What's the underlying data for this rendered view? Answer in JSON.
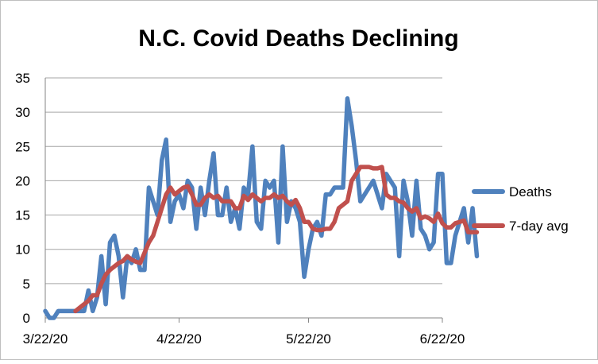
{
  "chart_data": {
    "type": "line",
    "title": "N.C. Covid Deaths Declining",
    "xlabel": "",
    "ylabel": "",
    "ylim": [
      0,
      35
    ],
    "y_ticks": [
      0,
      5,
      10,
      15,
      20,
      25,
      30,
      35
    ],
    "x_range": [
      "2020-03-22",
      "2020-06-22"
    ],
    "x_ticks": [
      {
        "label": "3/22/20",
        "date": "2020-03-22"
      },
      {
        "label": "4/22/20",
        "date": "2020-04-22"
      },
      {
        "label": "5/22/20",
        "date": "2020-05-22"
      },
      {
        "label": "6/22/20",
        "date": "2020-06-22"
      }
    ],
    "grid": true,
    "legend_position": "right",
    "series": [
      {
        "name": "Deaths",
        "color": "#4f81bd",
        "start_date": "2020-03-22",
        "values": [
          1,
          0,
          0,
          1,
          1,
          1,
          1,
          1,
          1,
          1,
          4,
          1,
          3,
          9,
          2,
          11,
          12,
          9,
          3,
          9,
          8,
          10,
          7,
          7,
          19,
          17,
          15,
          23,
          26,
          14,
          17,
          18,
          16,
          20,
          19,
          13,
          19,
          15,
          20,
          24,
          15,
          15,
          19,
          14,
          16,
          13,
          19,
          18,
          25,
          14,
          13,
          20,
          19,
          20,
          11,
          25,
          14,
          17,
          16,
          14,
          6,
          10,
          13,
          14,
          12,
          18,
          18,
          19,
          19,
          19,
          32,
          28,
          23,
          17,
          18,
          19,
          20,
          18,
          16,
          21,
          20,
          19,
          9,
          20,
          17,
          12,
          20,
          13,
          12,
          10,
          11,
          21,
          21,
          8,
          8,
          12,
          14,
          16,
          11,
          16,
          9
        ],
        "note": "daily values start 2020-03-22"
      },
      {
        "name": "7-day avg",
        "color": "#c0504d",
        "start_date": "2020-03-22",
        "values": [
          null,
          null,
          null,
          null,
          null,
          null,
          null,
          1,
          1.5,
          2,
          2.5,
          3.3,
          3.3,
          5,
          6.3,
          7,
          7.5,
          8,
          8.3,
          9,
          8.5,
          8.2,
          8,
          9.5,
          11,
          12,
          14,
          16,
          18,
          19,
          18,
          18.5,
          19,
          19.2,
          18,
          16.5,
          16.5,
          17.5,
          18,
          17.5,
          17.8,
          17,
          17,
          17,
          16,
          16,
          17.8,
          17.2,
          18,
          17.5,
          17,
          17.5,
          17.5,
          18,
          17.5,
          17.8,
          17,
          16.5,
          17.2,
          16,
          14,
          14,
          13,
          12.8,
          12.8,
          13,
          13,
          14,
          16,
          16.5,
          17,
          20,
          21,
          22,
          22,
          22,
          21.8,
          21.8,
          22,
          18,
          17.5,
          17.5,
          17,
          16.8,
          16,
          15.5,
          16,
          14.5,
          14.8,
          14.5,
          14,
          15.2,
          13.8,
          13.2,
          13.2,
          13.8,
          14,
          14.2,
          12.5,
          12.5,
          12.5
        ],
        "note": "7-day average starts 2020-03-29"
      }
    ]
  }
}
